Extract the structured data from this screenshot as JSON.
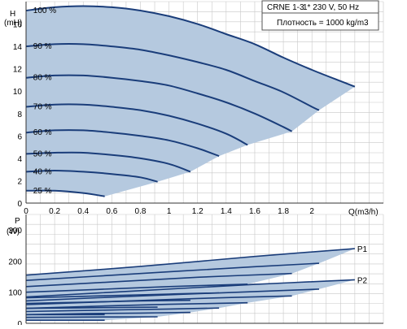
{
  "info_box": {
    "model": "CRNE 1-3",
    "supply": "1* 230 V, 50 Hz",
    "density": "Плотность = 1000 kg/m3"
  },
  "chart_data": [
    {
      "type": "area",
      "ylabel_line1": "H",
      "ylabel_line2": "(mH)",
      "xlabel": "Q(m3/h)",
      "xlim": [
        0,
        2.5
      ],
      "ylim": [
        0,
        18
      ],
      "x_ticks": [
        0,
        0.2,
        0.4,
        0.6,
        0.8,
        1,
        1.2,
        1.4,
        1.6,
        1.8,
        2
      ],
      "x_tick_labels": [
        "0",
        "0.2",
        "0.4",
        "0.6",
        "0.8",
        "1",
        "1.2",
        "1.4",
        "1.6",
        "1.8",
        "2"
      ],
      "y_ticks": [
        0,
        2,
        4,
        6,
        8,
        10,
        12,
        14,
        16
      ],
      "y_tick_labels": [
        "0",
        "2",
        "4",
        "6",
        "8",
        "10",
        "12",
        "14",
        "16"
      ],
      "grid": true,
      "colors": {
        "fill": "#b5c9df",
        "curve": "#1a3d7a",
        "grid": "#c8c8c8"
      },
      "series": [
        {
          "label": "100 %",
          "x": [
            0,
            0.2,
            0.4,
            0.6,
            0.8,
            1.0,
            1.2,
            1.4,
            1.6,
            1.8,
            2.0,
            2.2,
            2.3
          ],
          "y": [
            17.2,
            17.5,
            17.6,
            17.5,
            17.2,
            16.7,
            16.0,
            15.1,
            14.2,
            13.0,
            11.9,
            10.9,
            10.4
          ]
        },
        {
          "label": "90 %",
          "x": [
            0,
            0.2,
            0.4,
            0.6,
            0.8,
            1.0,
            1.2,
            1.4,
            1.6,
            1.8,
            2.0,
            2.05
          ],
          "y": [
            14.0,
            14.2,
            14.2,
            14.0,
            13.7,
            13.2,
            12.6,
            11.9,
            10.9,
            9.9,
            8.6,
            8.3
          ]
        },
        {
          "label": "80 %",
          "x": [
            0,
            0.2,
            0.4,
            0.6,
            0.8,
            1.0,
            1.2,
            1.4,
            1.6,
            1.8,
            1.86
          ],
          "y": [
            11.2,
            11.4,
            11.4,
            11.2,
            10.9,
            10.5,
            9.8,
            9.0,
            8.0,
            6.8,
            6.4
          ]
        },
        {
          "label": "70 %",
          "x": [
            0,
            0.2,
            0.4,
            0.6,
            0.8,
            1.0,
            1.2,
            1.4,
            1.55
          ],
          "y": [
            8.6,
            8.8,
            8.8,
            8.6,
            8.3,
            7.8,
            7.1,
            6.2,
            5.2
          ]
        },
        {
          "label": "60 %",
          "x": [
            0,
            0.2,
            0.4,
            0.6,
            0.8,
            1.0,
            1.2,
            1.35
          ],
          "y": [
            6.3,
            6.5,
            6.5,
            6.3,
            6.0,
            5.6,
            4.9,
            4.2
          ]
        },
        {
          "label": "50 %",
          "x": [
            0,
            0.2,
            0.4,
            0.6,
            0.8,
            1.0,
            1.15
          ],
          "y": [
            4.4,
            4.5,
            4.5,
            4.3,
            4.0,
            3.5,
            2.8
          ]
        },
        {
          "label": "40 %",
          "x": [
            0,
            0.2,
            0.4,
            0.6,
            0.8,
            0.92
          ],
          "y": [
            2.8,
            2.9,
            2.8,
            2.6,
            2.3,
            1.9
          ]
        },
        {
          "label": "25 %",
          "x": [
            0,
            0.2,
            0.4,
            0.55
          ],
          "y": [
            1.1,
            1.1,
            0.9,
            0.6
          ]
        }
      ]
    },
    {
      "type": "area",
      "ylabel_line1": "P",
      "ylabel_line2": "(W)",
      "xlim": [
        0,
        2.5
      ],
      "ylim": [
        0,
        350
      ],
      "y_ticks": [
        0,
        100,
        200,
        300
      ],
      "y_tick_labels": [
        "0",
        "100",
        "200",
        "300"
      ],
      "grid": true,
      "colors": {
        "fill": "#b5c9df",
        "curve": "#1a3d7a",
        "grid": "#c8c8c8"
      },
      "series": [
        {
          "label": "P1",
          "x": [
            0,
            0.8,
            1.6,
            2.3
          ],
          "y": [
            155,
            183,
            215,
            240
          ]
        },
        {
          "label": "",
          "x": [
            0,
            0.8,
            1.6,
            2.05
          ],
          "y": [
            138,
            160,
            182,
            193
          ]
        },
        {
          "label": "",
          "x": [
            0,
            0.6,
            1.2,
            1.86
          ],
          "y": [
            118,
            133,
            148,
            160
          ]
        },
        {
          "label": "",
          "x": [
            0,
            0.5,
            1.0,
            1.55
          ],
          "y": [
            100,
            109,
            118,
            126
          ]
        },
        {
          "label": "",
          "x": [
            0,
            0.5,
            1.0,
            1.35
          ],
          "y": [
            82,
            88,
            94,
            98
          ]
        },
        {
          "label": "",
          "x": [
            0,
            0.4,
            0.8,
            1.15
          ],
          "y": [
            64,
            68,
            72,
            74
          ]
        },
        {
          "label": "",
          "x": [
            0,
            0.4,
            0.92
          ],
          "y": [
            48,
            50,
            52
          ]
        },
        {
          "label": "",
          "x": [
            0,
            0.55
          ],
          "y": [
            28,
            28
          ]
        },
        {
          "label": "P2",
          "x": [
            0,
            0.8,
            1.6,
            2.3
          ],
          "y": [
            85,
            105,
            125,
            140
          ]
        },
        {
          "label": "",
          "x": [
            0,
            0.8,
            1.6,
            2.05
          ],
          "y": [
            72,
            88,
            102,
            110
          ]
        },
        {
          "label": "",
          "x": [
            0,
            0.6,
            1.2,
            1.86
          ],
          "y": [
            60,
            70,
            80,
            88
          ]
        },
        {
          "label": "",
          "x": [
            0,
            0.5,
            1.0,
            1.55
          ],
          "y": [
            48,
            55,
            61,
            66
          ]
        },
        {
          "label": "",
          "x": [
            0,
            0.5,
            1.0,
            1.35
          ],
          "y": [
            38,
            42,
            46,
            49
          ]
        },
        {
          "label": "",
          "x": [
            0,
            0.4,
            0.8,
            1.15
          ],
          "y": [
            28,
            31,
            33,
            35
          ]
        },
        {
          "label": "",
          "x": [
            0,
            0.4,
            0.92
          ],
          "y": [
            19,
            20,
            21
          ]
        },
        {
          "label": "",
          "x": [
            0,
            0.55
          ],
          "y": [
            10,
            10
          ]
        }
      ]
    }
  ]
}
